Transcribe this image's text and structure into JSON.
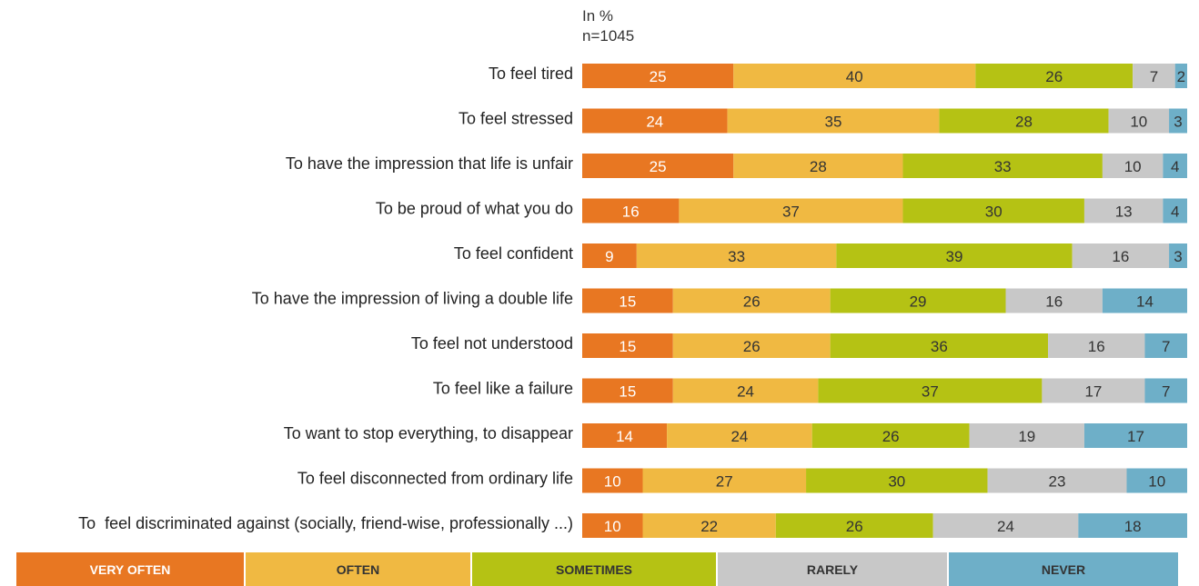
{
  "notes": {
    "unit": "In %",
    "sample": "n=1045"
  },
  "colors": {
    "very_often": "#e87722",
    "often": "#f0b942",
    "sometimes": "#b5c214",
    "rarely": "#c8c8c8",
    "never": "#6eafc8"
  },
  "legend": [
    {
      "label": "Very often",
      "color": "#e87722",
      "text_color": "#ffffff"
    },
    {
      "label": "Often",
      "color": "#f0b942",
      "text_color": "#333333"
    },
    {
      "label": "Sometimes",
      "color": "#b5c214",
      "text_color": "#333333"
    },
    {
      "label": "Rarely",
      "color": "#c8c8c8",
      "text_color": "#333333"
    },
    {
      "label": "Never",
      "color": "#6eafc8",
      "text_color": "#333333"
    }
  ],
  "chart_data": {
    "type": "bar",
    "orientation": "horizontal",
    "stacked": true,
    "categories": [
      "To feel tired",
      "To feel stressed",
      "To have the impression that life is unfair",
      "To be proud of what you do",
      "To feel confident",
      "To have the impression of living a double life",
      "To feel not understood",
      "To feel like a failure",
      "To want to stop everything, to disappear",
      "To feel disconnected from ordinary life",
      "To  feel discriminated against (socially, friend-wise, professionally ...)"
    ],
    "series": [
      {
        "name": "Very often",
        "values": [
          25,
          24,
          25,
          16,
          9,
          15,
          15,
          15,
          14,
          10,
          10
        ]
      },
      {
        "name": "Often",
        "values": [
          40,
          35,
          28,
          37,
          33,
          26,
          26,
          24,
          24,
          27,
          22
        ]
      },
      {
        "name": "Sometimes",
        "values": [
          26,
          28,
          33,
          30,
          39,
          29,
          36,
          37,
          26,
          30,
          26
        ]
      },
      {
        "name": "Rarely",
        "values": [
          7,
          10,
          10,
          13,
          16,
          16,
          16,
          17,
          19,
          23,
          24
        ]
      },
      {
        "name": "Never",
        "values": [
          2,
          3,
          4,
          4,
          3,
          14,
          7,
          7,
          17,
          10,
          18
        ]
      }
    ],
    "legend_position": "bottom",
    "grid": false
  }
}
